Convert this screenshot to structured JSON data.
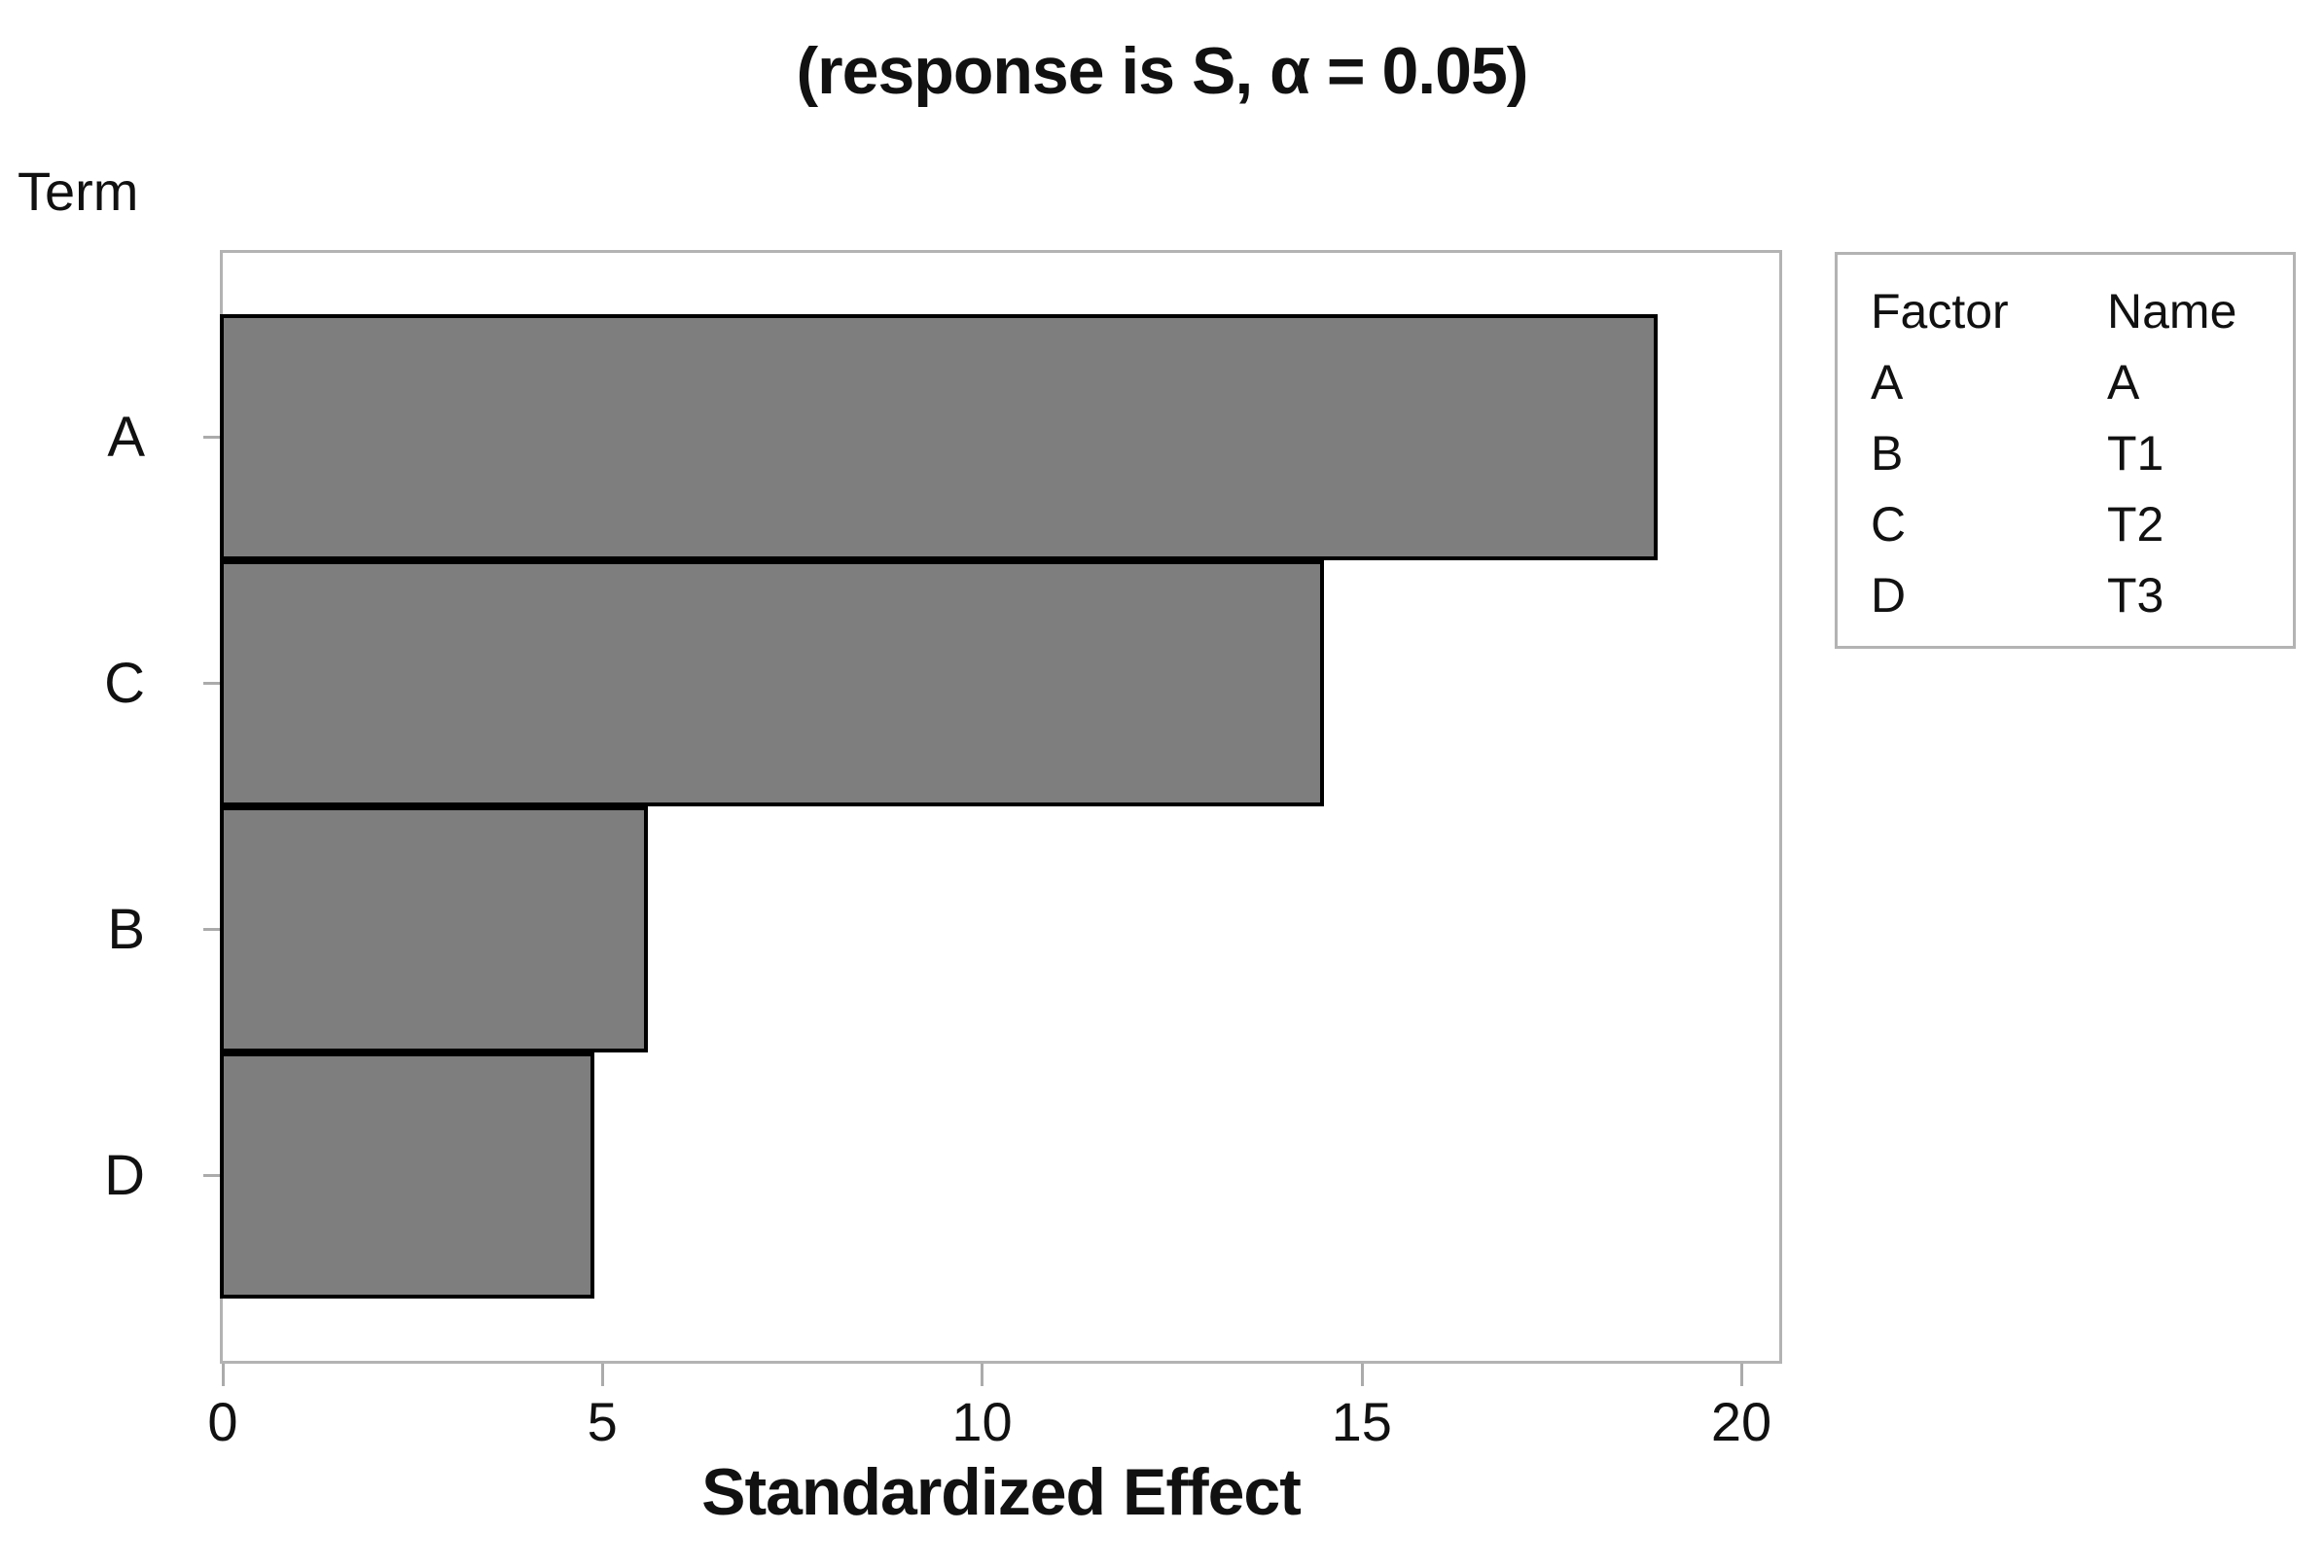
{
  "title": "(response is S, α = 0.05)",
  "y_axis": {
    "label": "Term",
    "categories": [
      "A",
      "C",
      "B",
      "D"
    ]
  },
  "x_axis": {
    "label": "Standardized Effect",
    "ticks": [
      "0",
      "5",
      "10",
      "15",
      "20"
    ]
  },
  "legend": {
    "headers": [
      "Factor",
      "Name"
    ],
    "rows": [
      [
        "A",
        "A"
      ],
      [
        "B",
        "T1"
      ],
      [
        "C",
        "T2"
      ],
      [
        "D",
        "T3"
      ]
    ]
  },
  "colors": {
    "bar_fill": "#7e7e7e",
    "bar_stroke": "#000000",
    "frame": "#b3b3b3",
    "tick": "#ababab"
  },
  "chart_data": {
    "type": "bar",
    "orientation": "horizontal",
    "title": "(response is S, α = 0.05)",
    "categories": [
      "A",
      "C",
      "B",
      "D"
    ],
    "values": [
      18.9,
      14.5,
      5.6,
      4.9
    ],
    "xlabel": "Standardized Effect",
    "ylabel": "Term",
    "xlim": [
      0,
      20.5
    ],
    "x_ticks": [
      0,
      5,
      10,
      15,
      20
    ],
    "grid": false,
    "legend_position": "right",
    "annotation_table": {
      "headers": [
        "Factor",
        "Name"
      ],
      "rows": [
        [
          "A",
          "A"
        ],
        [
          "B",
          "T1"
        ],
        [
          "C",
          "T2"
        ],
        [
          "D",
          "T3"
        ]
      ]
    }
  }
}
